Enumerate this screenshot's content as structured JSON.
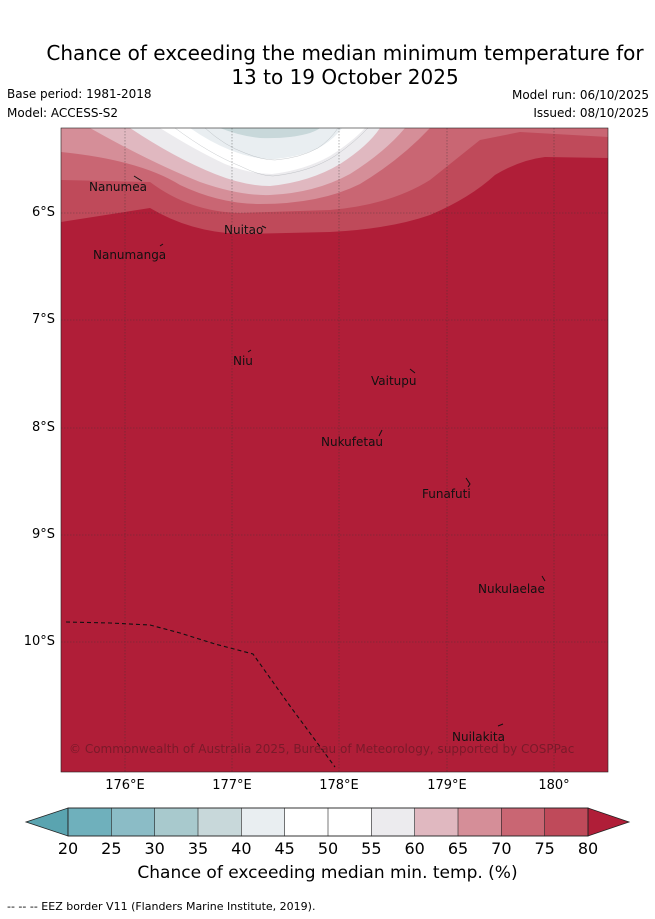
{
  "title": {
    "line1": "Chance of exceeding the median minimum temperature for",
    "line2": "13 to 19 October 2025"
  },
  "meta": {
    "base_period": "Base period: 1981-2018",
    "model": "Model: ACCESS-S2",
    "model_run": "Model run: 06/10/2025",
    "issued": "Issued: 08/10/2025"
  },
  "map": {
    "lat_labels": [
      "6°S",
      "7°S",
      "8°S",
      "9°S",
      "10°S"
    ],
    "lon_labels": [
      "176°E",
      "177°E",
      "178°E",
      "179°E",
      "180°"
    ],
    "islands": [
      "Nanumea",
      "Nuitao",
      "Nanumanga",
      "Niu",
      "Vaitupu",
      "Nukufetau",
      "Funafuti",
      "Nukulaelae",
      "Nuilakita"
    ],
    "credit": "© Commonwealth of Australia 2025, Bureau of Meteorology, supported by COSPPac"
  },
  "colorbar": {
    "ticks": [
      "20",
      "25",
      "30",
      "35",
      "40",
      "45",
      "50",
      "55",
      "60",
      "65",
      "70",
      "75",
      "80"
    ],
    "colors": [
      "#5aa4b0",
      "#6fb0bc",
      "#8bbcc6",
      "#a8c9cd",
      "#c8d8da",
      "#e9eef1",
      "#ffffff",
      "#ffffff",
      "#ecebee",
      "#e0b8c0",
      "#d58e98",
      "#c96673",
      "#bf4a5a",
      "#b01e38"
    ],
    "label": "Chance of exceeding median min. temp. (%)"
  },
  "legend": {
    "eez": "-- -- -- EEZ border V11 (Flanders Marine Institute, 2019)."
  }
}
